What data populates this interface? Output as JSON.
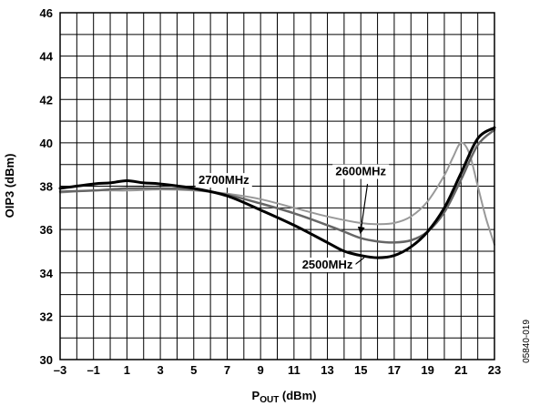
{
  "chart_data": {
    "type": "line",
    "title": "",
    "xlabel": "P",
    "xlabel_sub": "OUT",
    "xlabel_unit": " (dBm)",
    "ylabel": "OIP3 (dBm)",
    "xlim": [
      -3,
      23
    ],
    "ylim": [
      30,
      46
    ],
    "x_ticks": [
      -3,
      -1,
      1,
      3,
      5,
      7,
      9,
      11,
      13,
      15,
      17,
      19,
      21,
      23
    ],
    "x_tick_labels": [
      "–3",
      "–1",
      "1",
      "3",
      "5",
      "7",
      "9",
      "11",
      "13",
      "15",
      "17",
      "19",
      "21",
      "23"
    ],
    "y_ticks": [
      30,
      32,
      34,
      36,
      38,
      40,
      42,
      44,
      46
    ],
    "y_tick_labels": [
      "30",
      "32",
      "34",
      "36",
      "38",
      "40",
      "42",
      "44",
      "46"
    ],
    "grid": true,
    "legend": "none (inline labels)",
    "series": [
      {
        "name": "2500MHz",
        "color": "#000000",
        "x": [
          -3,
          -1,
          0,
          1,
          2,
          3,
          5,
          7,
          9,
          11,
          13,
          14,
          15,
          16,
          17,
          18,
          19,
          20,
          21,
          22,
          23
        ],
        "y": [
          37.9,
          38.1,
          38.15,
          38.25,
          38.15,
          38.1,
          37.9,
          37.55,
          36.9,
          36.2,
          35.4,
          35.0,
          34.8,
          34.7,
          34.8,
          35.2,
          35.9,
          37.0,
          38.6,
          40.2,
          40.7
        ]
      },
      {
        "name": "2600MHz",
        "color": "#666666",
        "x": [
          -3,
          -1,
          1,
          3,
          5,
          7,
          9,
          11,
          13,
          14,
          15,
          16,
          17,
          18,
          19,
          20,
          21,
          22,
          23
        ],
        "y": [
          37.75,
          37.8,
          37.9,
          37.9,
          37.85,
          37.6,
          37.2,
          36.75,
          36.2,
          35.9,
          35.6,
          35.45,
          35.4,
          35.5,
          35.9,
          36.8,
          38.3,
          39.9,
          40.6
        ]
      },
      {
        "name": "2700MHz",
        "color": "#999999",
        "x": [
          -3,
          -1,
          1,
          3,
          5,
          7,
          9,
          11,
          13,
          15,
          16,
          17,
          18,
          19,
          20,
          20.5,
          21,
          21.5,
          22,
          22.5,
          23
        ],
        "y": [
          37.7,
          37.8,
          37.8,
          37.85,
          37.8,
          37.65,
          37.4,
          37.0,
          36.6,
          36.3,
          36.25,
          36.3,
          36.6,
          37.3,
          38.5,
          39.3,
          40.0,
          39.5,
          38.0,
          36.5,
          35.3
        ]
      }
    ],
    "annotations": [
      {
        "text": "2700MHz",
        "x": 6.8,
        "y": 38.1
      },
      {
        "text": "2600MHz",
        "x": 15.0,
        "y": 38.5
      },
      {
        "text": "2500MHz",
        "x": 13.0,
        "y": 34.2
      }
    ],
    "figure_id": "05840-019"
  }
}
